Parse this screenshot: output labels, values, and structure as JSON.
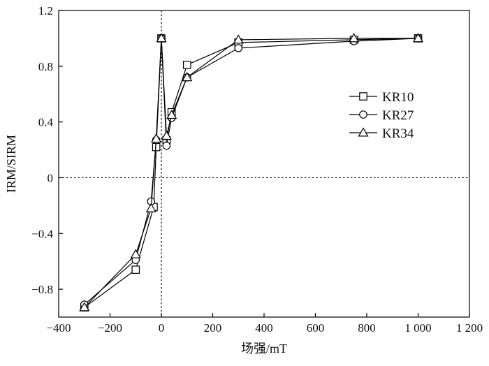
{
  "chart_data": {
    "type": "line",
    "xlabel": "场强/mT",
    "ylabel": "IRM/SIRM",
    "xlim": [
      -400,
      1200
    ],
    "ylim": [
      -1.0,
      1.2
    ],
    "xticks": [
      -400,
      -200,
      0,
      200,
      400,
      600,
      800,
      1000,
      1200
    ],
    "xtick_labels": [
      "−400",
      "−200",
      "0",
      "200",
      "400",
      "600",
      "800",
      "1 000",
      "1 200"
    ],
    "yticks": [
      -0.8,
      -0.4,
      0,
      0.4,
      0.8,
      1.2
    ],
    "ytick_labels": [
      "−0.8",
      "−0.4",
      "0",
      "0.4",
      "0.8",
      "1.2"
    ],
    "reference_lines": {
      "x": 0,
      "y": 0,
      "style": "dotted"
    },
    "grid": false,
    "legend_position": "right",
    "series": [
      {
        "name": "KR10",
        "marker": "square",
        "x": [
          -300,
          -100,
          -30,
          -20,
          0,
          20,
          40,
          100,
          300,
          750,
          1000
        ],
        "y": [
          -0.93,
          -0.66,
          -0.21,
          0.22,
          1.0,
          0.27,
          0.47,
          0.81,
          0.97,
          0.99,
          1.0
        ]
      },
      {
        "name": "KR27",
        "marker": "circle",
        "x": [
          -300,
          -100,
          -40,
          -20,
          0,
          20,
          40,
          100,
          300,
          750,
          1000
        ],
        "y": [
          -0.91,
          -0.59,
          -0.17,
          0.27,
          1.0,
          0.23,
          0.43,
          0.72,
          0.93,
          0.98,
          1.0
        ]
      },
      {
        "name": "KR34",
        "marker": "triangle",
        "x": [
          -300,
          -100,
          -40,
          -20,
          0,
          20,
          40,
          100,
          300,
          750,
          1000
        ],
        "y": [
          -0.93,
          -0.55,
          -0.22,
          0.28,
          1.0,
          0.3,
          0.45,
          0.72,
          0.99,
          1.0,
          1.0
        ]
      }
    ],
    "colors": {
      "line": "#000000",
      "marker_fill": "#ffffff"
    }
  }
}
